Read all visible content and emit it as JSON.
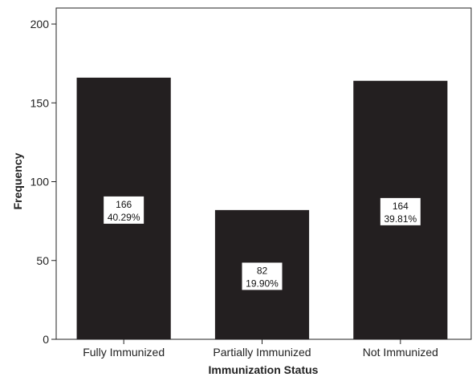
{
  "chart_data": {
    "type": "bar",
    "xlabel": "Immunization Status",
    "ylabel": "Frequency",
    "ylim": [
      0,
      200
    ],
    "yticks": [
      0,
      50,
      100,
      150,
      200
    ],
    "grid": false,
    "bar_color": "#231f20",
    "categories": [
      "Fully Immunized",
      "Partially Immunized",
      "Not Immunized"
    ],
    "values": [
      166,
      82,
      164
    ],
    "data_labels": [
      {
        "count": "166",
        "percent": "40.29%"
      },
      {
        "count": "82",
        "percent": "19.90%"
      },
      {
        "count": "164",
        "percent": "39.81%"
      }
    ]
  }
}
